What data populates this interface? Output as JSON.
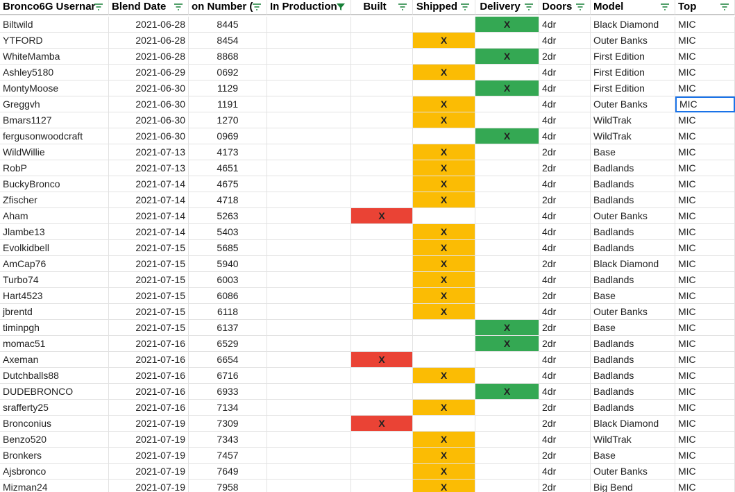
{
  "table": {
    "header": [
      "Bronco6G Usernar",
      "Blend Date",
      "on Number (",
      "In Production",
      "Built",
      "Shipped",
      "Delivery",
      "Doors",
      "Model",
      "Top"
    ],
    "rows": [
      [
        "Biltwild",
        "2021-06-28",
        "8445",
        null,
        null,
        null,
        "X",
        "4dr",
        "Black Diamond",
        "MIC"
      ],
      [
        "YTFORD",
        "2021-06-28",
        "8454",
        null,
        null,
        "X",
        null,
        "4dr",
        "Outer Banks",
        "MIC"
      ],
      [
        "WhiteMamba",
        "2021-06-28",
        "8868",
        null,
        null,
        null,
        "X",
        "2dr",
        "First Edition",
        "MIC"
      ],
      [
        "Ashley5180",
        "2021-06-29",
        "0692",
        null,
        null,
        "X",
        null,
        "4dr",
        "First Edition",
        "MIC"
      ],
      [
        "MontyMoose",
        "2021-06-30",
        "1129",
        null,
        null,
        null,
        "X",
        "4dr",
        "First Edition",
        "MIC"
      ],
      [
        "Greggvh",
        "2021-06-30",
        "1191",
        null,
        null,
        "X",
        null,
        "4dr",
        "Outer Banks",
        "MIC"
      ],
      [
        "Bmars1127",
        "2021-06-30",
        "1270",
        null,
        null,
        "X",
        null,
        "4dr",
        "WildTrak",
        "MIC"
      ],
      [
        "fergusonwoodcraft",
        "2021-06-30",
        "0969",
        null,
        null,
        null,
        "X",
        "4dr",
        "WildTrak",
        "MIC"
      ],
      [
        "WildWillie",
        "2021-07-13",
        "4173",
        null,
        null,
        "X",
        null,
        "2dr",
        "Base",
        "MIC"
      ],
      [
        "RobP",
        "2021-07-13",
        "4651",
        null,
        null,
        "X",
        null,
        "2dr",
        "Badlands",
        "MIC"
      ],
      [
        "BuckyBronco",
        "2021-07-14",
        "4675",
        null,
        null,
        "X",
        null,
        "4dr",
        "Badlands",
        "MIC"
      ],
      [
        "Zfischer",
        "2021-07-14",
        "4718",
        null,
        null,
        "X",
        null,
        "2dr",
        "Badlands",
        "MIC"
      ],
      [
        "Aham",
        "2021-07-14",
        "5263",
        null,
        "X",
        null,
        null,
        "4dr",
        "Outer Banks",
        "MIC"
      ],
      [
        "Jlambe13",
        "2021-07-14",
        "5403",
        null,
        null,
        "X",
        null,
        "4dr",
        "Badlands",
        "MIC"
      ],
      [
        "Evolkidbell",
        "2021-07-15",
        "5685",
        null,
        null,
        "X",
        null,
        "4dr",
        "Badlands",
        "MIC"
      ],
      [
        "AmCap76",
        "2021-07-15",
        "5940",
        null,
        null,
        "X",
        null,
        "2dr",
        "Black Diamond",
        "MIC"
      ],
      [
        "Turbo74",
        "2021-07-15",
        "6003",
        null,
        null,
        "X",
        null,
        "4dr",
        "Badlands",
        "MIC"
      ],
      [
        "Hart4523",
        "2021-07-15",
        "6086",
        null,
        null,
        "X",
        null,
        "2dr",
        "Base",
        "MIC"
      ],
      [
        "jbrentd",
        "2021-07-15",
        "6118",
        null,
        null,
        "X",
        null,
        "4dr",
        "Outer Banks",
        "MIC"
      ],
      [
        "timinpgh",
        "2021-07-15",
        "6137",
        null,
        null,
        null,
        "X",
        "2dr",
        "Base",
        "MIC"
      ],
      [
        "momac51",
        "2021-07-16",
        "6529",
        null,
        null,
        null,
        "X",
        "2dr",
        "Badlands",
        "MIC"
      ],
      [
        "Axeman",
        "2021-07-16",
        "6654",
        null,
        "X",
        null,
        null,
        "4dr",
        "Badlands",
        "MIC"
      ],
      [
        "Dutchballs88",
        "2021-07-16",
        "6716",
        null,
        null,
        "X",
        null,
        "4dr",
        "Badlands",
        "MIC"
      ],
      [
        "DUDEBRONCO",
        "2021-07-16",
        "6933",
        null,
        null,
        null,
        "X",
        "4dr",
        "Badlands",
        "MIC"
      ],
      [
        "srafferty25",
        "2021-07-16",
        "7134",
        null,
        null,
        "X",
        null,
        "2dr",
        "Badlands",
        "MIC"
      ],
      [
        "Bronconius",
        "2021-07-19",
        "7309",
        null,
        "X",
        null,
        null,
        "2dr",
        "Black Diamond",
        "MIC"
      ],
      [
        "Benzo520",
        "2021-07-19",
        "7343",
        null,
        null,
        "X",
        null,
        "4dr",
        "WildTrak",
        "MIC"
      ],
      [
        "Bronkers",
        "2021-07-19",
        "7457",
        null,
        null,
        "X",
        null,
        "2dr",
        "Base",
        "MIC"
      ],
      [
        "Ajsbronco",
        "2021-07-19",
        "7649",
        null,
        null,
        "X",
        null,
        "4dr",
        "Outer Banks",
        "MIC"
      ],
      [
        "Mizman24",
        "2021-07-19",
        "7958",
        null,
        null,
        "X",
        null,
        "2dr",
        "Big Bend",
        "MIC"
      ]
    ]
  }
}
